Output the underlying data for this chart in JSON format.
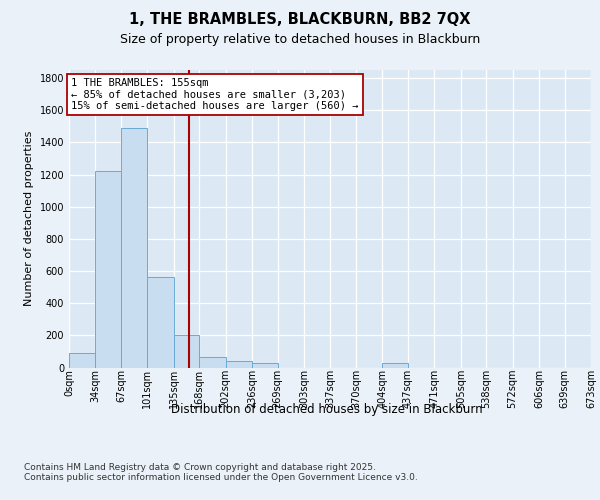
{
  "title": "1, THE BRAMBLES, BLACKBURN, BB2 7QX",
  "subtitle": "Size of property relative to detached houses in Blackburn",
  "xlabel": "Distribution of detached houses by size in Blackburn",
  "ylabel": "Number of detached properties",
  "bar_color": "#c8ddf0",
  "bar_edge_color": "#6aaad6",
  "annotation_line_color": "#aa0000",
  "annotation_text": "1 THE BRAMBLES: 155sqm\n← 85% of detached houses are smaller (3,203)\n15% of semi-detached houses are larger (560) →",
  "property_size": 155,
  "bin_edges": [
    0,
    34,
    67,
    101,
    135,
    168,
    202,
    236,
    269,
    303,
    337,
    370,
    404,
    437,
    471,
    505,
    538,
    572,
    606,
    639,
    673
  ],
  "bin_labels": [
    "0sqm",
    "34sqm",
    "67sqm",
    "101sqm",
    "135sqm",
    "168sqm",
    "202sqm",
    "236sqm",
    "269sqm",
    "303sqm",
    "337sqm",
    "370sqm",
    "404sqm",
    "437sqm",
    "471sqm",
    "505sqm",
    "538sqm",
    "572sqm",
    "606sqm",
    "639sqm",
    "673sqm"
  ],
  "bar_heights": [
    90,
    1225,
    1490,
    560,
    205,
    65,
    40,
    30,
    0,
    0,
    0,
    0,
    30,
    0,
    0,
    0,
    0,
    0,
    0,
    0
  ],
  "ylim": [
    0,
    1850
  ],
  "yticks": [
    0,
    200,
    400,
    600,
    800,
    1000,
    1200,
    1400,
    1600,
    1800
  ],
  "fig_bg": "#eaf1f8",
  "plot_bg": "#dce9f5",
  "footer": "Contains HM Land Registry data © Crown copyright and database right 2025.\nContains public sector information licensed under the Open Government Licence v3.0.",
  "title_fontsize": 10.5,
  "subtitle_fontsize": 9,
  "ylabel_fontsize": 8,
  "xlabel_fontsize": 8.5,
  "footer_fontsize": 6.5,
  "tick_fontsize": 7,
  "annot_fontsize": 7.5,
  "grid_color": "#ffffff"
}
